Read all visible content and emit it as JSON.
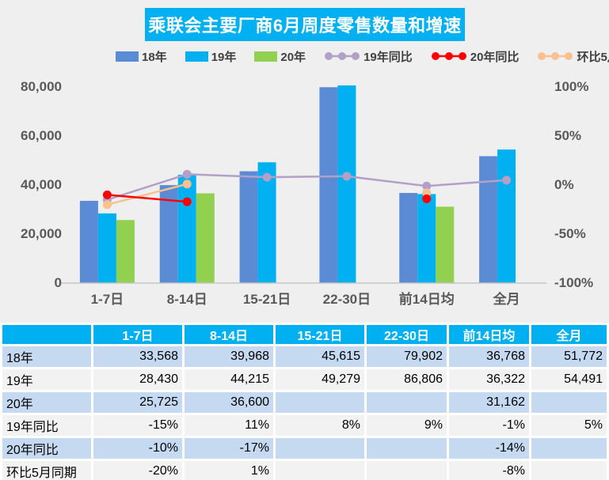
{
  "title": "乘联会主要厂商6月周度零售数量和增速",
  "colors": {
    "chart_background": "#EFEFEF",
    "title_bg": "#00B0F0",
    "table_header_bg": "#00B0F0",
    "row_fill_blue": "#C5D9F1",
    "row_fill_gray": "#F2F2F2",
    "axis_text": "#595959",
    "axis_line": "#C6C6C6"
  },
  "chart_data": {
    "type": "bar+line",
    "title": "乘联会主要厂商6月周度零售数量和增速",
    "categories": [
      "1-7日",
      "8-14日",
      "15-21日",
      "22-30日",
      "前14日均",
      "全月"
    ],
    "bar_series": [
      {
        "key": "y18",
        "name": "18年",
        "color": "#5B8BD4",
        "values": [
          33568,
          39968,
          45615,
          79902,
          36768,
          51772
        ]
      },
      {
        "key": "y19",
        "name": "19年",
        "color": "#00B0F0",
        "values": [
          28430,
          44215,
          49279,
          86806,
          36322,
          54491
        ]
      },
      {
        "key": "y20",
        "name": "20年",
        "color": "#92D050",
        "values": [
          25725,
          36600,
          null,
          null,
          31162,
          null
        ]
      }
    ],
    "line_series": [
      {
        "key": "yoy19",
        "name": "19年同比",
        "color": "#B1A0C7",
        "values_pct": [
          -15,
          11,
          8,
          9,
          -1,
          5
        ]
      },
      {
        "key": "yoy20",
        "name": "20年同比",
        "color": "#FF0000",
        "values_pct": [
          -10,
          -17,
          null,
          null,
          -14,
          null
        ]
      },
      {
        "key": "mom-may",
        "name": "环比5月同期",
        "color": "#FAC090",
        "values_pct": [
          -20,
          1,
          null,
          null,
          -8,
          null
        ]
      }
    ],
    "left_axis": {
      "min": 0,
      "max": 80000,
      "ticks": [
        {
          "v": 0,
          "label": "0"
        },
        {
          "v": 20000,
          "label": "20,000"
        },
        {
          "v": 40000,
          "label": "40,000"
        },
        {
          "v": 60000,
          "label": "60,000"
        },
        {
          "v": 80000,
          "label": "80,000"
        }
      ]
    },
    "right_axis": {
      "min": -100,
      "max": 100,
      "ticks": [
        {
          "v": -100,
          "label": "-100%"
        },
        {
          "v": -50,
          "label": "-50%"
        },
        {
          "v": 0,
          "label": "0%"
        },
        {
          "v": 50,
          "label": "50%"
        },
        {
          "v": 100,
          "label": "100%"
        }
      ]
    },
    "gridlines": false,
    "legend_position": "top"
  },
  "table": {
    "header": [
      "",
      "1-7日",
      "8-14日",
      "15-21日",
      "22-30日",
      "前14日均",
      "全月"
    ],
    "rows": [
      {
        "label": "18年",
        "fill": "blue",
        "cells": [
          "33,568",
          "39,968",
          "45,615",
          "79,902",
          "36,768",
          "51,772"
        ]
      },
      {
        "label": "19年",
        "fill": "gray",
        "cells": [
          "28,430",
          "44,215",
          "49,279",
          "86,806",
          "36,322",
          "54,491"
        ]
      },
      {
        "label": "20年",
        "fill": "blue",
        "cells": [
          "25,725",
          "36,600",
          "",
          "",
          "31,162",
          ""
        ]
      },
      {
        "label": "19年同比",
        "fill": "gray",
        "cells": [
          "-15%",
          "11%",
          "8%",
          "9%",
          "-1%",
          "5%"
        ]
      },
      {
        "label": "20年同比",
        "fill": "blue",
        "cells": [
          "-10%",
          "-17%",
          "",
          "",
          "-14%",
          ""
        ]
      },
      {
        "label": "环比5月同期",
        "fill": "gray",
        "cells": [
          "-20%",
          "1%",
          "",
          "",
          "-8%",
          ""
        ]
      }
    ]
  }
}
